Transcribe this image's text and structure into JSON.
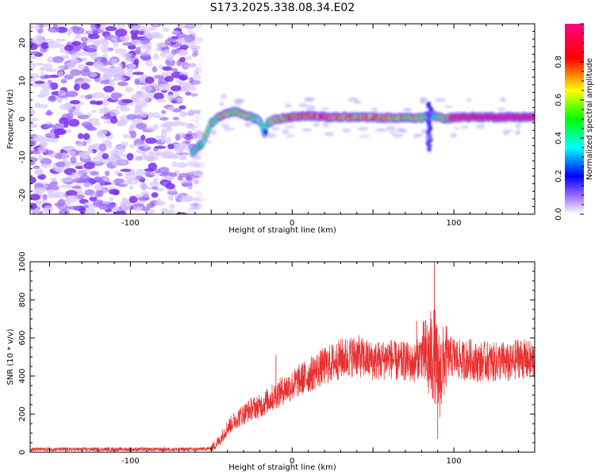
{
  "title": "S173.2025.338.08.34.E02",
  "chart_data": [
    {
      "type": "heatmap",
      "xlabel": "Height of straight line (km)",
      "ylabel": "Frequency (Hz)",
      "xlim": [
        -162,
        150
      ],
      "ylim": [
        -25,
        25
      ],
      "xticks": [
        -100,
        0,
        100
      ],
      "yticks": [
        -20,
        -10,
        0,
        10,
        20
      ],
      "colorbar": {
        "label": "Normalized spectral amplitude",
        "range": [
          0,
          1
        ],
        "ticks": [
          0.0,
          0.2,
          0.4,
          0.6,
          0.8
        ],
        "colors": [
          "#ffffff",
          "#a070ff",
          "#0000ff",
          "#00ffff",
          "#00ff00",
          "#ffff00",
          "#ff0000",
          "#ff00a0"
        ]
      },
      "noise_region_x": [
        -162,
        -60
      ],
      "ridge": {
        "x": [
          -62,
          -55,
          -50,
          -45,
          -40,
          -35,
          -30,
          -25,
          -20,
          -17,
          -15,
          -10,
          0,
          10,
          20,
          40,
          60,
          80,
          85,
          90,
          95,
          100,
          150
        ],
        "freq": [
          -9,
          -6,
          -1,
          0.5,
          1.5,
          2,
          1,
          0.5,
          -0.5,
          -4,
          -1,
          0,
          0.5,
          1,
          0.5,
          0.5,
          0.3,
          0.3,
          1,
          0.5,
          0,
          0.5,
          0.5
        ],
        "amp": [
          0.4,
          0.45,
          0.5,
          0.55,
          0.6,
          0.55,
          0.6,
          0.55,
          0.5,
          0.35,
          0.5,
          0.6,
          0.7,
          0.75,
          0.85,
          0.7,
          0.65,
          0.6,
          0.3,
          0.5,
          0.6,
          0.95,
          1.0
        ]
      }
    },
    {
      "type": "line",
      "xlabel": "Height of straight line (km)",
      "ylabel": "SNR (10 * v/v)",
      "xlim": [
        -162,
        150
      ],
      "ylim": [
        0,
        1000
      ],
      "xticks": [
        -100,
        0,
        100
      ],
      "yticks": [
        0,
        200,
        400,
        600,
        800,
        1000
      ],
      "color": "#e83030",
      "series": [
        {
          "name": "SNR",
          "x": [
            -162,
            -140,
            -120,
            -100,
            -80,
            -60,
            -50,
            -45,
            -40,
            -35,
            -30,
            -25,
            -20,
            -15,
            -10,
            -5,
            0,
            5,
            10,
            15,
            20,
            25,
            30,
            35,
            40,
            45,
            50,
            55,
            60,
            65,
            70,
            75,
            80,
            85,
            88,
            90,
            92,
            95,
            100,
            105,
            110,
            115,
            120,
            125,
            130,
            135,
            140,
            145,
            150
          ],
          "y": [
            15,
            15,
            15,
            15,
            15,
            15,
            20,
            60,
            130,
            170,
            200,
            230,
            240,
            270,
            300,
            330,
            350,
            380,
            400,
            430,
            450,
            470,
            490,
            500,
            510,
            490,
            480,
            480,
            500,
            470,
            480,
            460,
            520,
            490,
            520,
            400,
            420,
            500,
            500,
            480,
            490,
            470,
            480,
            470,
            480,
            460,
            500,
            480,
            480
          ]
        }
      ],
      "spikes": [
        {
          "x": -10,
          "y": 510
        },
        {
          "x": 77,
          "y": 690
        },
        {
          "x": 88,
          "y": 1000
        },
        {
          "x": 90,
          "y": 70
        }
      ]
    }
  ]
}
